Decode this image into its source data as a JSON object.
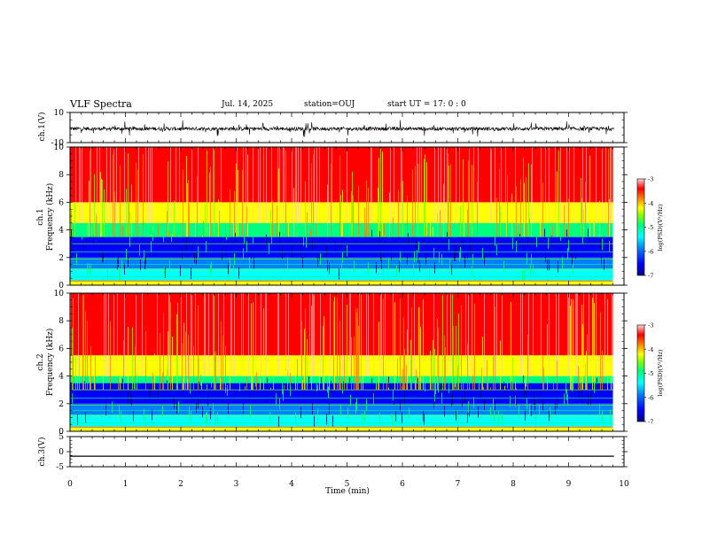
{
  "header": {
    "title": "VLF Spectra",
    "date": "Jul. 14, 2025",
    "station": "station=OUJ",
    "start": "start UT = 17: 0 : 0"
  },
  "chart_data": [
    {
      "type": "line",
      "panel": "ch1-waveform",
      "ylabel": "ch.1(V)",
      "ylim": [
        -10,
        10
      ],
      "yticks": [
        "10",
        "-10"
      ],
      "xlim": [
        0,
        10
      ],
      "baseline": -0.8,
      "noise_amplitude": 1.2,
      "line_color": "#000000"
    },
    {
      "type": "heatmap",
      "panel": "ch1-spectrogram",
      "ylabel": "ch.1",
      "ylabel2": "Frequency (kHz)",
      "ylim": [
        0,
        10
      ],
      "yticks": [
        "0",
        "2",
        "4",
        "6",
        "8",
        "10"
      ],
      "xlim": [
        0,
        10
      ],
      "data_end_min": 9.8,
      "colorbar": {
        "label": "log(PSD)(V²/Hz)",
        "range": [
          -7,
          -3
        ],
        "ticks": [
          "-3",
          "-4",
          "-5",
          "-6",
          "-7"
        ]
      },
      "low_band_kHz": [
        0.3,
        3.5
      ],
      "high_band_kHz": [
        4.5,
        10
      ]
    },
    {
      "type": "heatmap",
      "panel": "ch2-spectrogram",
      "ylabel": "ch.2",
      "ylabel2": "Frequency (kHz)",
      "ylim": [
        0,
        10
      ],
      "yticks": [
        "0",
        "2",
        "4",
        "6",
        "8",
        "10"
      ],
      "xlim": [
        0,
        10
      ],
      "data_end_min": 9.8,
      "colorbar": {
        "label": "log(PSD)(V²/Hz)",
        "range": [
          -7,
          -3
        ],
        "ticks": [
          "-3",
          "-4",
          "-5",
          "-6",
          "-7"
        ]
      },
      "low_band_kHz": [
        0.3,
        3.5
      ],
      "high_band_kHz": [
        4.0,
        10
      ]
    },
    {
      "type": "line",
      "panel": "ch3-waveform",
      "ylabel": "ch.3(V)",
      "ylim": [
        -5,
        5
      ],
      "yticks": [
        "5",
        "0",
        "-5"
      ],
      "xlim": [
        0,
        10
      ],
      "baseline": -1.5,
      "line_color": "#000000"
    }
  ],
  "xaxis": {
    "label": "Time (min)",
    "ticks": [
      "0",
      "1",
      "2",
      "3",
      "4",
      "5",
      "6",
      "7",
      "8",
      "9",
      "10"
    ]
  },
  "colors": {
    "palette": [
      "#00007f",
      "#0000ff",
      "#0080ff",
      "#00ffff",
      "#00ff80",
      "#80ff00",
      "#ffff00",
      "#ff8000",
      "#ff0000",
      "#ffc8c8"
    ]
  }
}
